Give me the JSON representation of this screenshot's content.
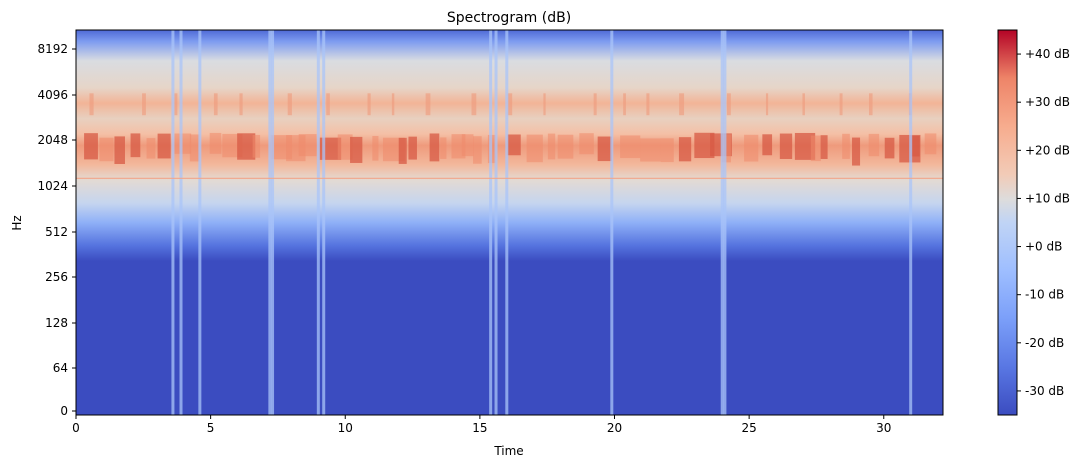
{
  "chart_data": {
    "type": "heatmap",
    "title": "Spectrogram (dB)",
    "xlabel": "Time",
    "ylabel": "Hz",
    "x_scale": "linear",
    "y_scale": "symlog",
    "xlim": [
      0,
      32.2
    ],
    "x_ticks": [
      0,
      5,
      10,
      15,
      20,
      25,
      30
    ],
    "x_tick_labels": [
      "0",
      "5",
      "10",
      "15",
      "20",
      "25",
      "30"
    ],
    "y_ticks": [
      0,
      64,
      128,
      256,
      512,
      1024,
      2048,
      4096,
      8192
    ],
    "y_tick_labels": [
      "0",
      "64",
      "128",
      "256",
      "512",
      "1024",
      "2048",
      "4096",
      "8192"
    ],
    "colormap": "coolwarm",
    "colorbar": {
      "range": [
        -35,
        45
      ],
      "ticks": [
        -30,
        -20,
        -10,
        0,
        10,
        20,
        30,
        40
      ],
      "tick_labels": [
        "-30 dB",
        "-20 dB",
        "-10 dB",
        "+0 dB",
        "+10 dB",
        "+20 dB",
        "+30 dB",
        "+40 dB"
      ],
      "placement": "right"
    },
    "features": {
      "energy_band_hz": [
        1500,
        2300
      ],
      "hum_line_hz": 1150,
      "upper_band_hz": [
        3000,
        4200
      ],
      "vertical_transients_s": [
        3.6,
        3.9,
        4.6,
        7.2,
        7.3,
        9.0,
        9.2,
        15.4,
        15.6,
        16.0,
        19.9,
        24.0,
        24.1,
        31.0
      ]
    },
    "grid": false
  }
}
